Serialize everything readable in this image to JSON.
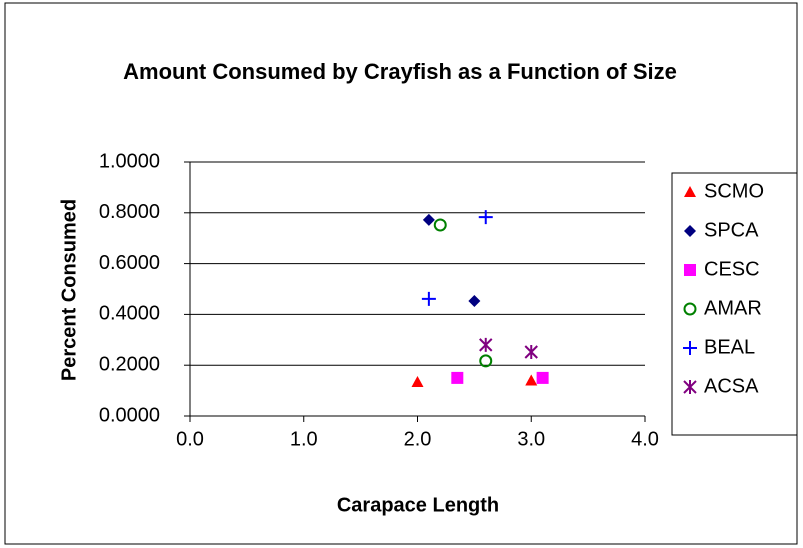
{
  "chart_data": {
    "type": "scatter",
    "title": "Amount Consumed by Crayfish as a Function of Size",
    "xlabel": "Carapace Length",
    "ylabel": "Percent Consumed",
    "xlim": [
      0,
      4
    ],
    "ylim": [
      0,
      1
    ],
    "xticks": [
      {
        "value": 0,
        "label": "0.0"
      },
      {
        "value": 1,
        "label": "1.0"
      },
      {
        "value": 2,
        "label": "2.0"
      },
      {
        "value": 3,
        "label": "3.0"
      },
      {
        "value": 4,
        "label": "4.0"
      }
    ],
    "yticks": [
      {
        "value": 0,
        "label": "0.0000"
      },
      {
        "value": 0.2,
        "label": "0.2000"
      },
      {
        "value": 0.4,
        "label": "0.4000"
      },
      {
        "value": 0.6,
        "label": "0.6000"
      },
      {
        "value": 0.8,
        "label": "0.8000"
      },
      {
        "value": 1,
        "label": "1.0000"
      }
    ],
    "grid": true,
    "legend": "right",
    "series": [
      {
        "name": "SCMO",
        "color": "#ff0000",
        "marker": "triangle",
        "x": [
          2.0,
          3.0
        ],
        "values": [
          0.134,
          0.14
        ]
      },
      {
        "name": "SPCA",
        "color": "#000080",
        "marker": "diamond",
        "x": [
          2.1,
          2.5
        ],
        "values": [
          0.772,
          0.453
        ]
      },
      {
        "name": "CESC",
        "color": "#ff00ff",
        "marker": "square",
        "x": [
          2.35,
          3.1
        ],
        "values": [
          0.15,
          0.15
        ]
      },
      {
        "name": "AMAR",
        "color": "#008000",
        "marker": "circle",
        "x": [
          2.2,
          2.6
        ],
        "values": [
          0.752,
          0.217
        ]
      },
      {
        "name": "BEAL",
        "color": "#0000ff",
        "marker": "plus",
        "x": [
          2.6,
          2.1
        ],
        "values": [
          0.783,
          0.461
        ]
      },
      {
        "name": "ACSA",
        "color": "#800080",
        "marker": "asterisk",
        "x": [
          2.6,
          3.0
        ],
        "values": [
          0.28,
          0.252
        ]
      }
    ]
  }
}
